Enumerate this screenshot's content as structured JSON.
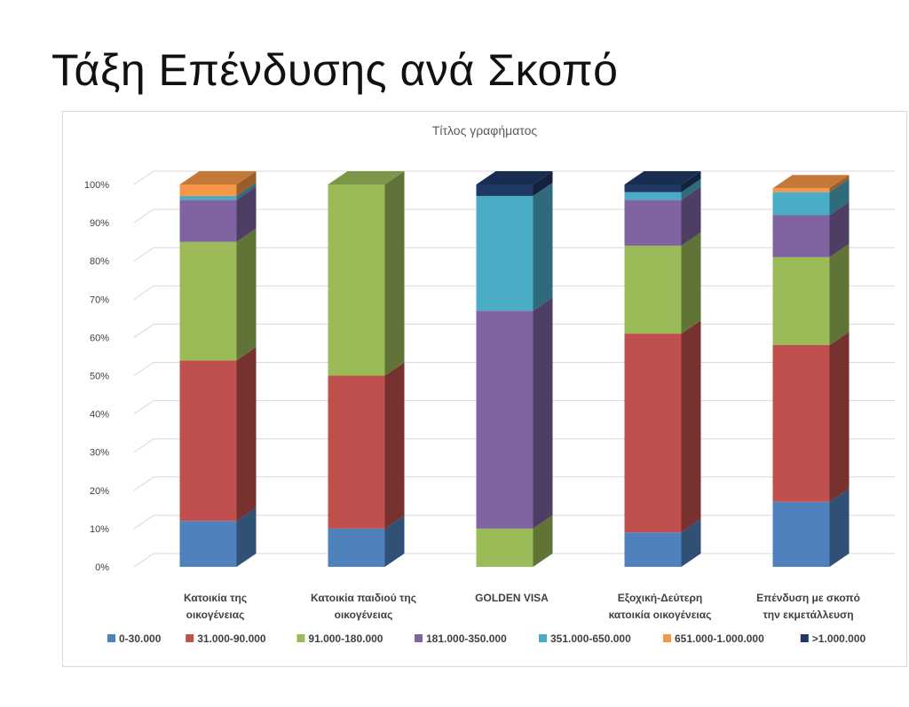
{
  "slide": {
    "title": "Τάξη Επένδυσης ανά Σκοπό"
  },
  "chart_data": {
    "type": "bar",
    "stacked": true,
    "percent": true,
    "three_d": true,
    "title": "Τίτλος γραφήματος",
    "ylim": [
      0,
      100
    ],
    "yticks": [
      "0%",
      "10%",
      "20%",
      "30%",
      "40%",
      "50%",
      "60%",
      "70%",
      "80%",
      "90%",
      "100%"
    ],
    "grid": true,
    "legend_position": "bottom",
    "categories": [
      [
        "Κατοικία της",
        "οικογένειας"
      ],
      [
        "Κατοικία παιδιού της",
        "οικογένειας"
      ],
      [
        "GOLDEN VISA"
      ],
      [
        "Εξοχική-Δεύτερη",
        "κατοικία οικογένειας"
      ],
      [
        "Επένδυση με σκοπό",
        "την εκμετάλλευση"
      ]
    ],
    "series": [
      {
        "name": "0-30.000",
        "color": "#4F81BD",
        "values": [
          12,
          10,
          0,
          9,
          17
        ]
      },
      {
        "name": "31.000-90.000",
        "color": "#C0504D",
        "values": [
          42,
          40,
          0,
          52,
          41
        ]
      },
      {
        "name": "91.000-180.000",
        "color": "#9BBB59",
        "values": [
          31,
          50,
          10,
          23,
          23
        ]
      },
      {
        "name": "181.000-350.000",
        "color": "#8064A2",
        "values": [
          11,
          0,
          57,
          12,
          11
        ]
      },
      {
        "name": "351.000-650.000",
        "color": "#4BACC6",
        "values": [
          1,
          0,
          30,
          2,
          6
        ]
      },
      {
        "name": "651.000-1.000.000",
        "color": "#F79646",
        "values": [
          3,
          0,
          0,
          0,
          1
        ]
      },
      {
        "name": ">1.000.000",
        "color": "#1F3864",
        "values": [
          0,
          0,
          3,
          2,
          0
        ]
      }
    ]
  }
}
